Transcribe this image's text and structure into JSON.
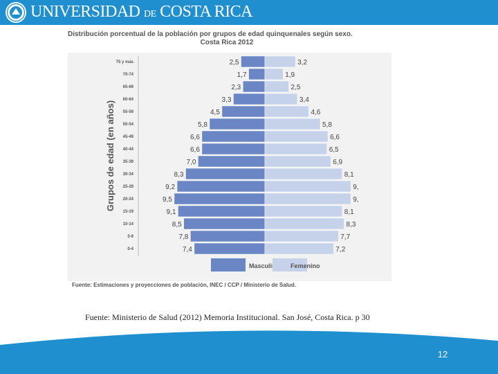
{
  "header": {
    "title_main": "UNIVERSIDAD",
    "title_de": "DE",
    "title_rest": "COSTA RICA",
    "color": "#1f8fd0"
  },
  "chart_data": {
    "type": "bar",
    "orientation": "horizontal-population-pyramid",
    "title_line1": "Distribución porcentual de la población por  grupos de edad quinquenales según sexo.",
    "title_line2": "Costa Rica 2012",
    "ylabel": "Grupos de edad (en años)",
    "categories": [
      "75 y más",
      "70-74",
      "65-69",
      "60-64",
      "55-59",
      "50-54",
      "45-49",
      "40-44",
      "35-39",
      "30-34",
      "25-29",
      "20-24",
      "15-19",
      "10-14",
      "5-9",
      "0-4"
    ],
    "series": [
      {
        "name": "Masculino",
        "color": "#6b86c4",
        "values": [
          2.5,
          1.7,
          2.3,
          3.3,
          4.5,
          5.8,
          6.6,
          6.6,
          7.0,
          8.3,
          9.2,
          9.5,
          9.1,
          8.5,
          7.8,
          7.4
        ],
        "labels": [
          "2,5",
          "1,7",
          "2,3",
          "3,3",
          "4,5",
          "5,8",
          "6,6",
          "6,6",
          "7,0",
          "8,3",
          "9,2",
          "9,5",
          "9,1",
          "8,5",
          "7,8",
          "7,4"
        ]
      },
      {
        "name": "Femenino",
        "color": "#c5d2ea",
        "values": [
          3.2,
          1.9,
          2.5,
          3.4,
          4.6,
          5.8,
          6.6,
          6.5,
          6.9,
          8.1,
          9.0,
          9.0,
          8.1,
          8.3,
          7.7,
          7.2
        ],
        "labels": [
          "3,2",
          "1,9",
          "2,5",
          "3,4",
          "4,6",
          "5,8",
          "6,6",
          "6,5",
          "6,9",
          "8,1",
          "9,",
          "9,",
          "8,1",
          "8,3",
          "7,7",
          "7,2"
        ]
      }
    ],
    "legend_position": "bottom",
    "source": "Fuente: Estimaciones y proyecciones de población, INEC / CCP / Ministerio de Salud."
  },
  "citation": "Fuente: Ministerio de Salud (2012) Memoria Institucional. San José, Costa Rica. p 30",
  "page_number": "12",
  "colors": {
    "plot_background": "#f2f2f2",
    "footer": "#1f8fd0"
  }
}
